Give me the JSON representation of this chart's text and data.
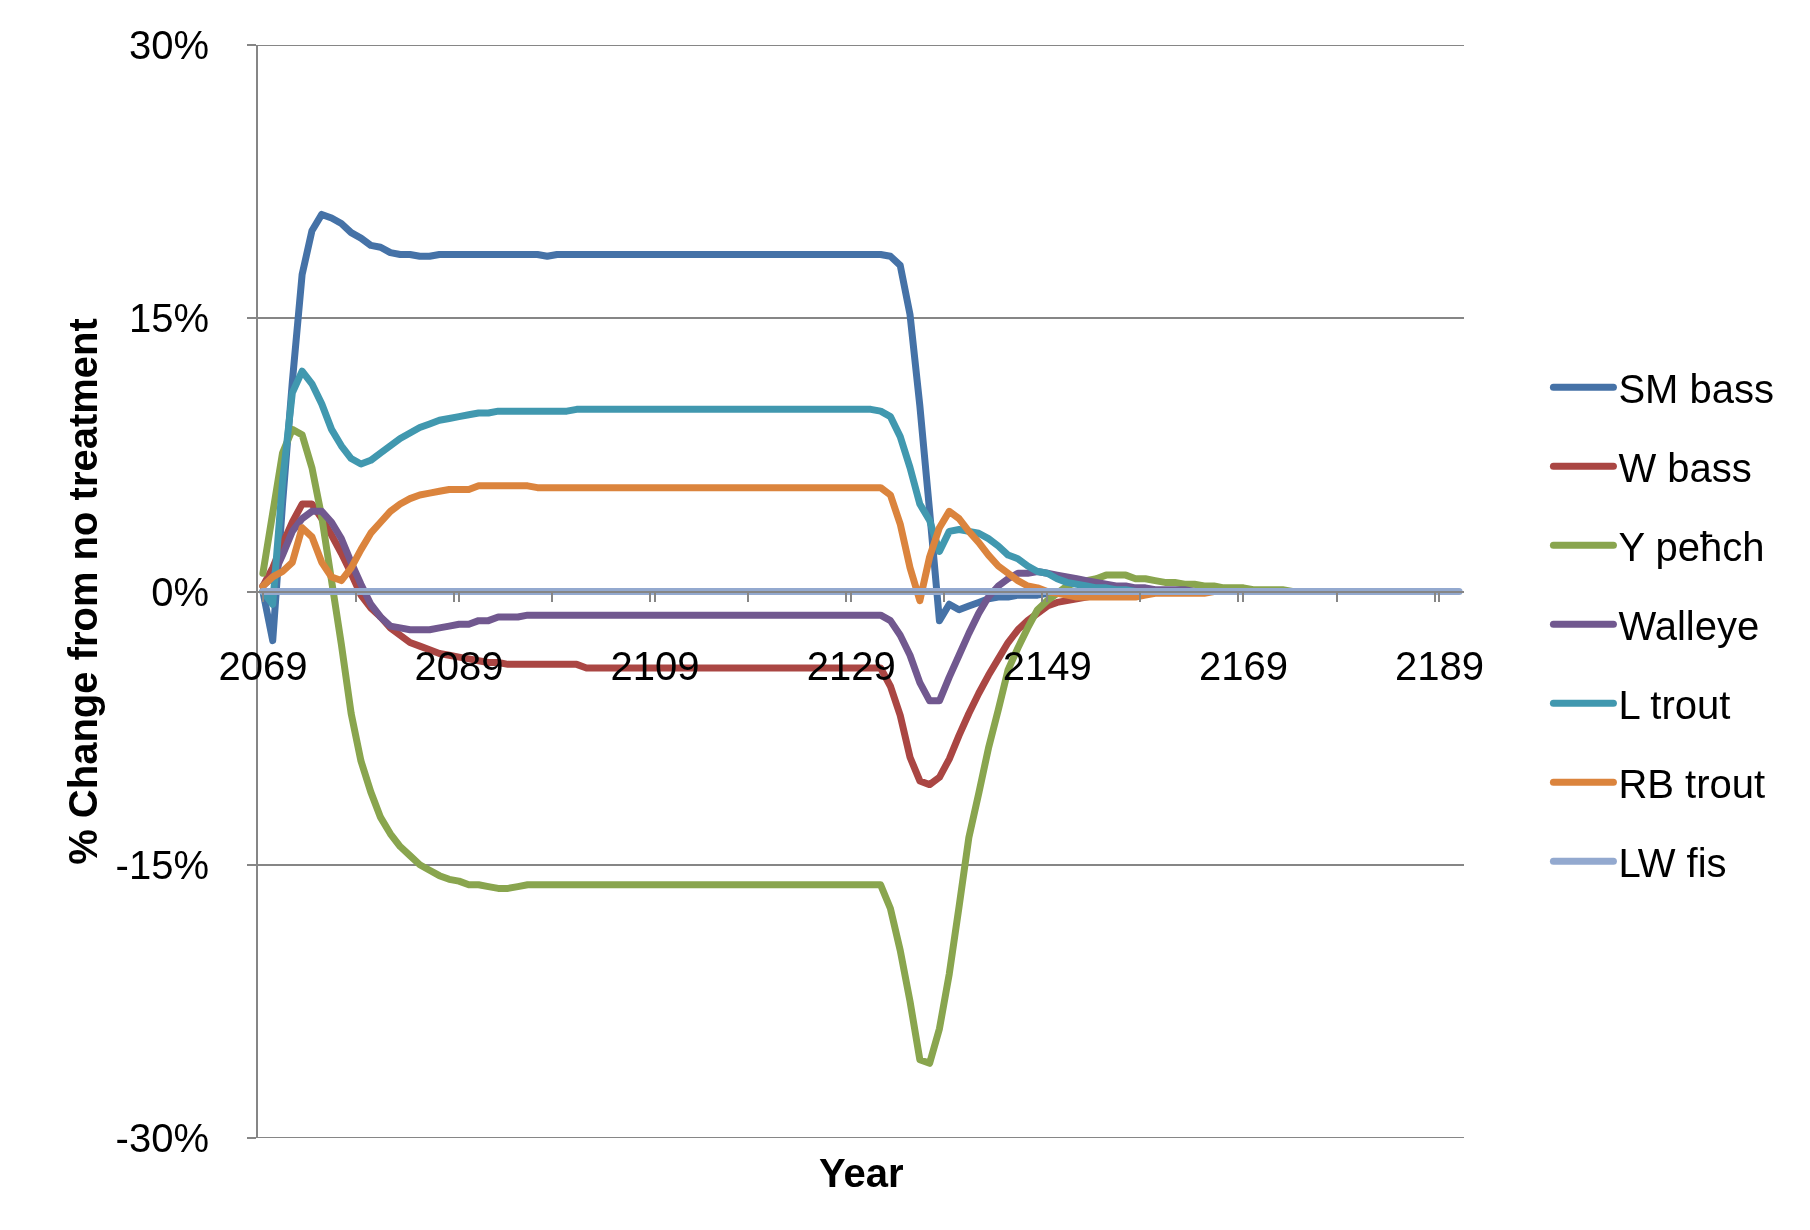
{
  "chart_data": {
    "type": "line",
    "xlabel": "Year",
    "ylabel": "% Change from no treatment",
    "x": [
      2069,
      2070,
      2071,
      2072,
      2073,
      2074,
      2075,
      2076,
      2077,
      2078,
      2079,
      2080,
      2081,
      2082,
      2083,
      2084,
      2085,
      2086,
      2087,
      2088,
      2089,
      2090,
      2091,
      2092,
      2093,
      2094,
      2095,
      2096,
      2097,
      2098,
      2099,
      2100,
      2101,
      2102,
      2103,
      2104,
      2105,
      2106,
      2107,
      2108,
      2109,
      2110,
      2111,
      2112,
      2113,
      2114,
      2115,
      2116,
      2117,
      2118,
      2119,
      2120,
      2121,
      2122,
      2123,
      2124,
      2125,
      2126,
      2127,
      2128,
      2129,
      2130,
      2131,
      2132,
      2133,
      2134,
      2135,
      2136,
      2137,
      2138,
      2139,
      2140,
      2141,
      2142,
      2143,
      2144,
      2145,
      2146,
      2147,
      2148,
      2149,
      2150,
      2151,
      2152,
      2153,
      2154,
      2155,
      2156,
      2157,
      2158,
      2159,
      2160,
      2161,
      2162,
      2163,
      2164,
      2165,
      2166,
      2167,
      2168,
      2169,
      2170,
      2171,
      2172,
      2173,
      2174,
      2175,
      2176,
      2177,
      2178,
      2179,
      2180,
      2181,
      2182,
      2183,
      2184,
      2185,
      2186,
      2187,
      2188,
      2189,
      2190,
      2191
    ],
    "xlim": [
      2068.5,
      2191.5
    ],
    "xticks": [
      2069,
      {
        "value": 2078.5,
        "label": null
      },
      {
        "value": 2088.5,
        "label": null
      },
      2089,
      {
        "value": 2098.5,
        "label": null
      },
      {
        "value": 2108.5,
        "label": null
      },
      2109,
      {
        "value": 2118.5,
        "label": null
      },
      {
        "value": 2128.5,
        "label": null
      },
      2129,
      {
        "value": 2138.5,
        "label": null
      },
      {
        "value": 2148.5,
        "label": null
      },
      2149,
      {
        "value": 2158.5,
        "label": null
      },
      {
        "value": 2168.5,
        "label": null
      },
      2169,
      {
        "value": 2178.5,
        "label": null
      },
      {
        "value": 2188.5,
        "label": null
      },
      2189
    ],
    "ylim": [
      -30,
      30
    ],
    "yticks": [
      {
        "value": -30,
        "label": "-30%"
      },
      {
        "value": -15,
        "label": "-15%"
      },
      {
        "value": 0,
        "label": "0%"
      },
      {
        "value": 15,
        "label": "15%"
      },
      {
        "value": 30,
        "label": "30%"
      }
    ],
    "grid": "y",
    "legend": "right",
    "marker": "none",
    "line_style": "solid",
    "series": [
      {
        "name": "SM bass",
        "color": "#4572a7",
        "values": [
          0,
          -2.7,
          4.8,
          11.5,
          17.4,
          19.8,
          20.7,
          20.5,
          20.2,
          19.7,
          19.4,
          19.0,
          18.9,
          18.6,
          18.5,
          18.5,
          18.4,
          18.4,
          18.5,
          18.5,
          18.5,
          18.5,
          18.5,
          18.5,
          18.5,
          18.5,
          18.5,
          18.5,
          18.5,
          18.4,
          18.5,
          18.5,
          18.5,
          18.5,
          18.5,
          18.5,
          18.5,
          18.5,
          18.5,
          18.5,
          18.5,
          18.5,
          18.5,
          18.5,
          18.5,
          18.5,
          18.5,
          18.5,
          18.5,
          18.5,
          18.5,
          18.5,
          18.5,
          18.5,
          18.5,
          18.5,
          18.5,
          18.5,
          18.5,
          18.5,
          18.5,
          18.5,
          18.5,
          18.5,
          18.4,
          17.9,
          15.2,
          10.2,
          4.4,
          -1.6,
          -0.7,
          -1.0,
          -0.8,
          -0.6,
          -0.4,
          -0.3,
          -0.3,
          -0.2,
          -0.2,
          -0.2,
          -0.1,
          -0.1,
          -0.1,
          0,
          null,
          null,
          null,
          null,
          null,
          null,
          null,
          null,
          null,
          null,
          null,
          null,
          null,
          null,
          null,
          null,
          null,
          null,
          null,
          null,
          null,
          null,
          null,
          null,
          null,
          null,
          null,
          null,
          null,
          null,
          null,
          null,
          null,
          null,
          null,
          null,
          null,
          null,
          null
        ]
      },
      {
        "name": "W bass",
        "color": "#aa4643",
        "values": [
          0.3,
          1.3,
          2.6,
          3.8,
          4.8,
          4.8,
          4.0,
          3.1,
          2.1,
          1.0,
          -0.2,
          -0.9,
          -1.4,
          -2.0,
          -2.4,
          -2.8,
          -3.0,
          -3.2,
          -3.4,
          -3.5,
          -3.6,
          -3.7,
          -3.8,
          -3.9,
          -3.9,
          -4.0,
          -4.0,
          -4.0,
          -4.0,
          -4.0,
          -4.0,
          -4.0,
          -4.0,
          -4.2,
          -4.2,
          -4.2,
          -4.2,
          -4.2,
          -4.2,
          -4.2,
          -4.2,
          -4.2,
          -4.2,
          -4.2,
          -4.2,
          -4.2,
          -4.2,
          -4.2,
          -4.2,
          -4.2,
          -4.2,
          -4.2,
          -4.2,
          -4.2,
          -4.2,
          -4.2,
          -4.2,
          -4.2,
          -4.2,
          -4.2,
          -4.2,
          -4.2,
          -4.2,
          -4.2,
          -5.2,
          -6.8,
          -9.1,
          -10.4,
          -10.6,
          -10.2,
          -9.2,
          -7.9,
          -6.7,
          -5.6,
          -4.6,
          -3.7,
          -2.8,
          -2.1,
          -1.6,
          -1.2,
          -0.8,
          -0.6,
          -0.5,
          -0.4,
          -0.3,
          -0.2,
          -0.2,
          -0.1,
          -0.1,
          -0.1,
          -0.1,
          0,
          null,
          null,
          null,
          null,
          null,
          null,
          null,
          null,
          null,
          null,
          null,
          null,
          null,
          null,
          null,
          null,
          null,
          null,
          null,
          null,
          null,
          null,
          null,
          null,
          null,
          null,
          null,
          null,
          null,
          null,
          null
        ]
      },
      {
        "name": "Y peħch",
        "color": "#89a54e",
        "values": [
          1.0,
          4.3,
          7.6,
          8.9,
          8.6,
          6.8,
          4.1,
          0.6,
          -2.9,
          -6.7,
          -9.3,
          -11.0,
          -12.4,
          -13.3,
          -14.0,
          -14.5,
          -15.0,
          -15.3,
          -15.6,
          -15.8,
          -15.9,
          -16.1,
          -16.1,
          -16.2,
          -16.3,
          -16.3,
          -16.2,
          -16.1,
          -16.1,
          -16.1,
          -16.1,
          -16.1,
          -16.1,
          -16.1,
          -16.1,
          -16.1,
          -16.1,
          -16.1,
          -16.1,
          -16.1,
          -16.1,
          -16.1,
          -16.1,
          -16.1,
          -16.1,
          -16.1,
          -16.1,
          -16.1,
          -16.1,
          -16.1,
          -16.1,
          -16.1,
          -16.1,
          -16.1,
          -16.1,
          -16.1,
          -16.1,
          -16.1,
          -16.1,
          -16.1,
          -16.1,
          -16.1,
          -16.1,
          -16.1,
          -17.4,
          -19.7,
          -22.5,
          -25.7,
          -25.9,
          -24.0,
          -21.0,
          -17.3,
          -13.5,
          -11.1,
          -8.6,
          -6.5,
          -4.3,
          -3.1,
          -2.0,
          -1.0,
          -0.5,
          -0.1,
          0.3,
          0.5,
          0.6,
          0.7,
          0.9,
          0.9,
          0.9,
          0.7,
          0.7,
          0.6,
          0.5,
          0.5,
          0.4,
          0.4,
          0.3,
          0.3,
          0.2,
          0.2,
          0.2,
          0.1,
          0.1,
          0.1,
          0.1,
          0,
          null,
          null,
          null,
          null,
          null,
          null,
          null,
          null,
          null,
          null,
          null,
          null,
          null,
          null,
          null,
          null,
          null
        ]
      },
      {
        "name": "Walleye",
        "color": "#71588f",
        "values": [
          0.3,
          0.8,
          2.0,
          3.3,
          4.0,
          4.4,
          4.4,
          3.8,
          2.9,
          1.6,
          0.4,
          -0.7,
          -1.4,
          -1.9,
          -2.0,
          -2.1,
          -2.1,
          -2.1,
          -2.0,
          -1.9,
          -1.8,
          -1.8,
          -1.6,
          -1.6,
          -1.4,
          -1.4,
          -1.4,
          -1.3,
          -1.3,
          -1.3,
          -1.3,
          -1.3,
          -1.3,
          -1.3,
          -1.3,
          -1.3,
          -1.3,
          -1.3,
          -1.3,
          -1.3,
          -1.3,
          -1.3,
          -1.3,
          -1.3,
          -1.3,
          -1.3,
          -1.3,
          -1.3,
          -1.3,
          -1.3,
          -1.3,
          -1.3,
          -1.3,
          -1.3,
          -1.3,
          -1.3,
          -1.3,
          -1.3,
          -1.3,
          -1.3,
          -1.3,
          -1.3,
          -1.3,
          -1.3,
          -1.6,
          -2.4,
          -3.5,
          -5.0,
          -6.0,
          -6.0,
          -4.7,
          -3.5,
          -2.3,
          -1.2,
          -0.3,
          0.3,
          0.7,
          1.0,
          1.0,
          1.1,
          1.0,
          0.9,
          0.8,
          0.7,
          0.6,
          0.5,
          0.4,
          0.3,
          0.3,
          0.2,
          0.2,
          0.1,
          0.1,
          0.1,
          0.1,
          0,
          null,
          null,
          null,
          null,
          null,
          null,
          null,
          null,
          null,
          null,
          null,
          null,
          null,
          null,
          null,
          null,
          null,
          null,
          null,
          null,
          null,
          null,
          null,
          null,
          null,
          null,
          null
        ]
      },
      {
        "name": "L trout",
        "color": "#4198af",
        "values": [
          0,
          -0.7,
          6.0,
          10.9,
          12.1,
          11.4,
          10.3,
          8.9,
          8.0,
          7.3,
          7.0,
          7.2,
          7.6,
          8.0,
          8.4,
          8.7,
          9.0,
          9.2,
          9.4,
          9.5,
          9.6,
          9.7,
          9.8,
          9.8,
          9.9,
          9.9,
          9.9,
          9.9,
          9.9,
          9.9,
          9.9,
          9.9,
          10.0,
          10.0,
          10.0,
          10.0,
          10.0,
          10.0,
          10.0,
          10.0,
          10.0,
          10.0,
          10.0,
          10.0,
          10.0,
          10.0,
          10.0,
          10.0,
          10.0,
          10.0,
          10.0,
          10.0,
          10.0,
          10.0,
          10.0,
          10.0,
          10.0,
          10.0,
          10.0,
          10.0,
          10.0,
          10.0,
          10.0,
          9.9,
          9.6,
          8.5,
          6.8,
          4.8,
          3.9,
          2.2,
          3.3,
          3.4,
          3.3,
          3.2,
          2.9,
          2.5,
          2.0,
          1.8,
          1.4,
          1.1,
          1.0,
          0.7,
          0.5,
          0.4,
          0.3,
          0.2,
          0.2,
          0.1,
          0.1,
          0,
          null,
          null,
          null,
          null,
          null,
          null,
          null,
          null,
          null,
          null,
          null,
          null,
          null,
          null,
          null,
          null,
          null,
          null,
          null,
          null,
          null,
          null,
          null,
          null,
          null,
          null,
          null,
          null,
          null,
          null,
          null,
          null,
          null
        ]
      },
      {
        "name": "RB trout",
        "color": "#db843d",
        "values": [
          0.3,
          0.8,
          1.1,
          1.6,
          3.5,
          3.0,
          1.6,
          0.8,
          0.6,
          1.3,
          2.3,
          3.2,
          3.8,
          4.4,
          4.8,
          5.1,
          5.3,
          5.4,
          5.5,
          5.6,
          5.6,
          5.6,
          5.8,
          5.8,
          5.8,
          5.8,
          5.8,
          5.8,
          5.7,
          5.7,
          5.7,
          5.7,
          5.7,
          5.7,
          5.7,
          5.7,
          5.7,
          5.7,
          5.7,
          5.7,
          5.7,
          5.7,
          5.7,
          5.7,
          5.7,
          5.7,
          5.7,
          5.7,
          5.7,
          5.7,
          5.7,
          5.7,
          5.7,
          5.7,
          5.7,
          5.7,
          5.7,
          5.7,
          5.7,
          5.7,
          5.7,
          5.7,
          5.7,
          5.7,
          5.3,
          3.7,
          1.3,
          -0.5,
          1.9,
          3.5,
          4.4,
          4.0,
          3.3,
          2.7,
          2.0,
          1.4,
          1.0,
          0.6,
          0.3,
          0.2,
          0,
          -0.1,
          -0.2,
          -0.3,
          -0.3,
          -0.3,
          -0.3,
          -0.3,
          -0.3,
          -0.3,
          -0.2,
          -0.1,
          -0.1,
          -0.1,
          -0.1,
          -0.1,
          -0.1,
          0,
          null,
          null,
          null,
          null,
          null,
          null,
          null,
          null,
          null,
          null,
          null,
          null,
          null,
          null,
          null,
          null,
          null,
          null,
          null,
          null,
          null,
          null,
          null,
          null,
          null
        ]
      },
      {
        "name": "LW fis",
        "color": "#93a9cf",
        "values": [
          0,
          0,
          0,
          0,
          0,
          0,
          0,
          0,
          0,
          0,
          0,
          0,
          0,
          0,
          0,
          0,
          0,
          0,
          0,
          0,
          0,
          0,
          0,
          0,
          0,
          0,
          0,
          0,
          0,
          0,
          0,
          0,
          0,
          0,
          0,
          0,
          0,
          0,
          0,
          0,
          0,
          0,
          0,
          0,
          0,
          0,
          0,
          0,
          0,
          0,
          0,
          0,
          0,
          0,
          0,
          0,
          0,
          0,
          0,
          0,
          0,
          0,
          0,
          0,
          0,
          0,
          0,
          0,
          0,
          0,
          0,
          0,
          0,
          0,
          0,
          0,
          0,
          0,
          0,
          0,
          0,
          0,
          0,
          0,
          0,
          0,
          0,
          0,
          0,
          0,
          0,
          0,
          0,
          0,
          0,
          0,
          0,
          0,
          0,
          0,
          0,
          0,
          0,
          0,
          0,
          0,
          0,
          0,
          0,
          0,
          0,
          0,
          0,
          0,
          0,
          0,
          0,
          0,
          0,
          0,
          0,
          0,
          0
        ]
      }
    ]
  }
}
